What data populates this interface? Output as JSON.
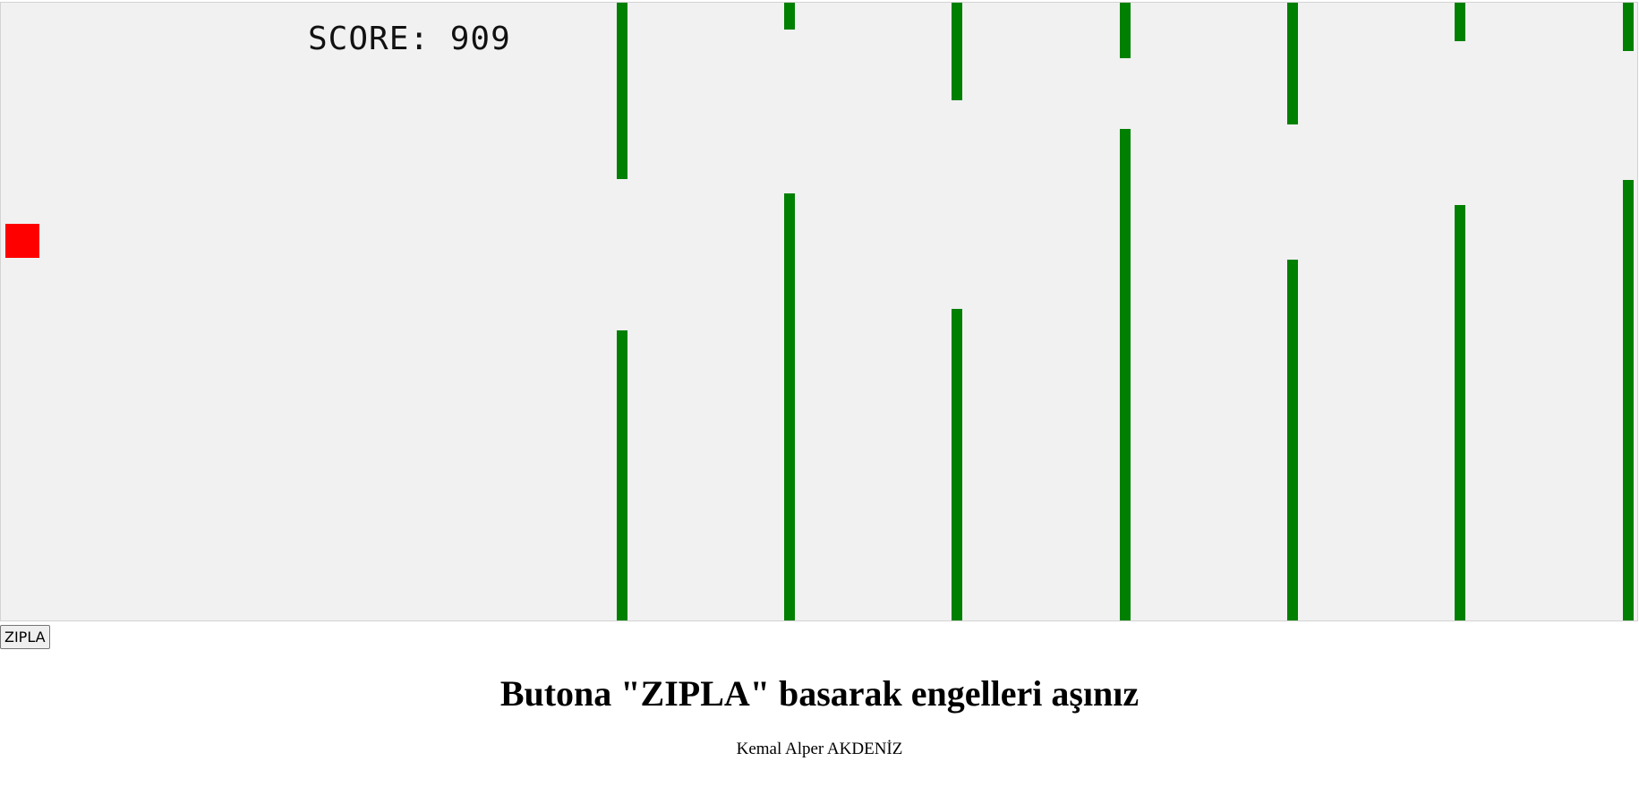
{
  "game": {
    "score_text": "SCORE: 909",
    "player_color": "#ff0000",
    "obstacle_color": "#008000",
    "canvas_background": "#f1f1f1"
  },
  "controls": {
    "jump_label": "ZIPLA"
  },
  "page": {
    "instructions": "Butona \"ZIPLA\" basarak engelleri aşınız",
    "author": "Kemal Alper AKDENİZ"
  }
}
